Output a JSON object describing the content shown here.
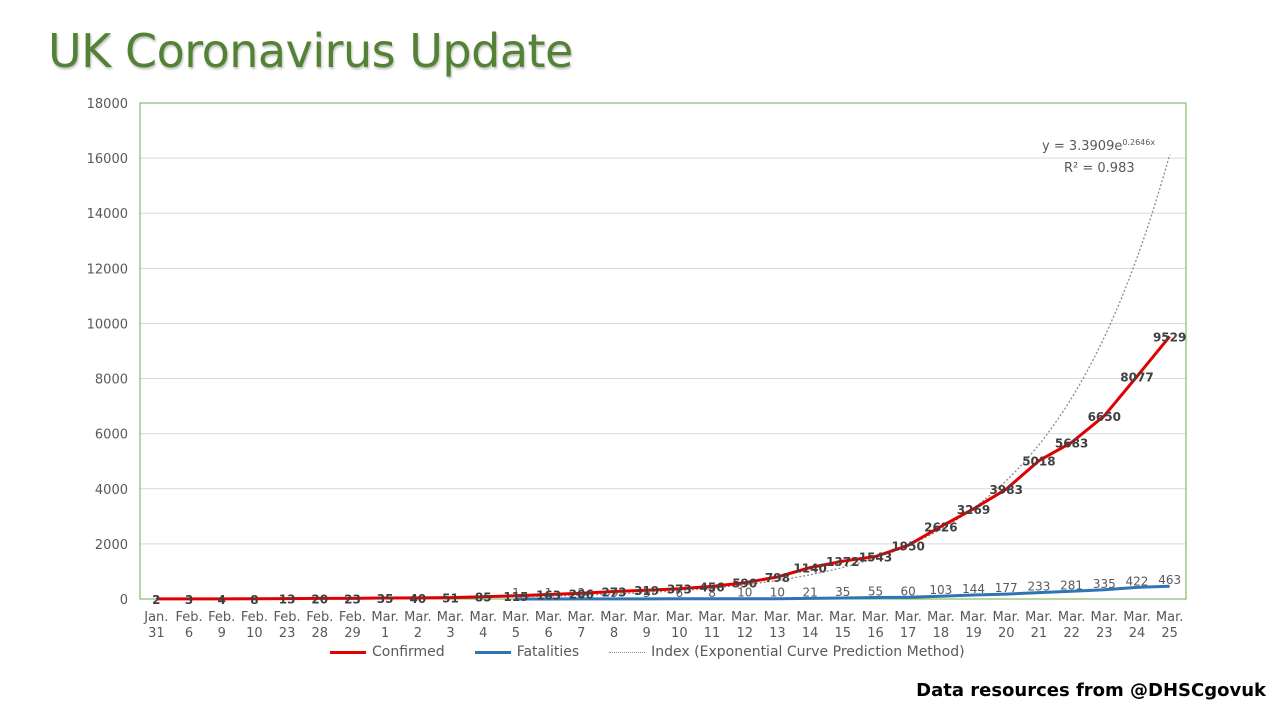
{
  "page": {
    "title": "UK Coronavirus Update",
    "credit": "Data resources from @DHSCgovuk"
  },
  "colors": {
    "title": "#548235",
    "confirmed": "#e00000",
    "fatalities": "#2e75b6",
    "trend": "#8c8c8c",
    "frame": "#70ad47"
  },
  "chart_data": {
    "type": "line",
    "title": "",
    "xlabel": "",
    "ylabel": "",
    "ylim": [
      0,
      18000
    ],
    "yticks": [
      0,
      2000,
      4000,
      6000,
      8000,
      10000,
      12000,
      14000,
      16000,
      18000
    ],
    "grid": true,
    "legend_position": "bottom",
    "categories": [
      [
        "Jan.",
        "31"
      ],
      [
        "Feb.",
        "6"
      ],
      [
        "Feb.",
        "9"
      ],
      [
        "Feb.",
        "10"
      ],
      [
        "Feb.",
        "23"
      ],
      [
        "Feb.",
        "28"
      ],
      [
        "Feb.",
        "29"
      ],
      [
        "Mar.",
        "1"
      ],
      [
        "Mar.",
        "2"
      ],
      [
        "Mar.",
        "3"
      ],
      [
        "Mar.",
        "4"
      ],
      [
        "Mar.",
        "5"
      ],
      [
        "Mar.",
        "6"
      ],
      [
        "Mar.",
        "7"
      ],
      [
        "Mar.",
        "8"
      ],
      [
        "Mar.",
        "9"
      ],
      [
        "Mar.",
        "10"
      ],
      [
        "Mar.",
        "11"
      ],
      [
        "Mar.",
        "12"
      ],
      [
        "Mar.",
        "13"
      ],
      [
        "Mar.",
        "14"
      ],
      [
        "Mar.",
        "15"
      ],
      [
        "Mar.",
        "16"
      ],
      [
        "Mar.",
        "17"
      ],
      [
        "Mar.",
        "18"
      ],
      [
        "Mar.",
        "19"
      ],
      [
        "Mar.",
        "20"
      ],
      [
        "Mar.",
        "21"
      ],
      [
        "Mar.",
        "22"
      ],
      [
        "Mar.",
        "23"
      ],
      [
        "Mar.",
        "24"
      ],
      [
        "Mar.",
        "25"
      ]
    ],
    "series": [
      {
        "name": "Confirmed",
        "values": [
          2,
          3,
          4,
          8,
          13,
          20,
          23,
          35,
          40,
          51,
          85,
          115,
          163,
          206,
          273,
          319,
          373,
          456,
          590,
          798,
          1140,
          1372,
          1543,
          1950,
          2626,
          3269,
          3983,
          5018,
          5683,
          6650,
          8077,
          9529
        ]
      },
      {
        "name": "Fatalities",
        "values": [
          null,
          null,
          null,
          null,
          null,
          null,
          null,
          null,
          null,
          null,
          null,
          1,
          1,
          2,
          3,
          3,
          6,
          8,
          10,
          10,
          21,
          35,
          55,
          60,
          103,
          144,
          177,
          233,
          281,
          335,
          422,
          463
        ]
      }
    ],
    "trendline": {
      "name": "Index (Exponential Curve Prediction Method)",
      "type": "exponential",
      "a": 3.3909,
      "b": 0.2646,
      "equation": "y = 3.3909e",
      "exponent": "0.2646x",
      "r_squared": "R² = 0.983"
    }
  }
}
